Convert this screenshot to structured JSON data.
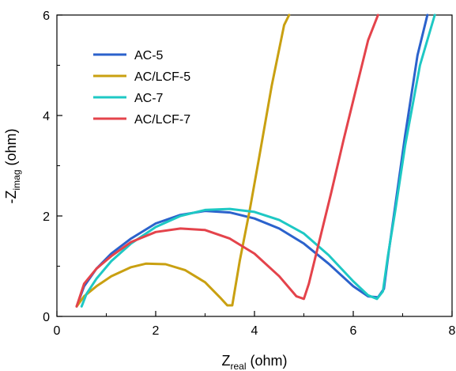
{
  "chart_data": {
    "type": "line",
    "xlabel": {
      "main": "Z",
      "sub": "real",
      "unit": " (ohm)"
    },
    "ylabel": {
      "prefix": "-Z",
      "sub": "imag",
      "unit": " (ohm)"
    },
    "xlim": [
      0,
      8
    ],
    "ylim": [
      0,
      6
    ],
    "xticks": [
      0,
      2,
      4,
      6,
      8
    ],
    "yticks": [
      0,
      2,
      4,
      6
    ],
    "grid": false,
    "legend_position": "top-left",
    "series": [
      {
        "name": "AC-5",
        "color": "#2b62cc",
        "x": [
          0.4,
          0.55,
          0.8,
          1.1,
          1.5,
          2.0,
          2.5,
          3.0,
          3.5,
          4.0,
          4.5,
          5.0,
          5.5,
          6.0,
          6.3,
          6.5,
          6.62,
          6.72,
          6.85,
          7.05,
          7.3,
          7.5
        ],
        "y": [
          0.2,
          0.6,
          0.95,
          1.25,
          1.55,
          1.85,
          2.02,
          2.1,
          2.07,
          1.95,
          1.75,
          1.45,
          1.05,
          0.6,
          0.4,
          0.38,
          0.55,
          1.3,
          2.2,
          3.6,
          5.2,
          6.0
        ]
      },
      {
        "name": "AC/LCF-5",
        "color": "#c9a011",
        "x": [
          0.4,
          0.55,
          0.8,
          1.1,
          1.5,
          1.8,
          2.2,
          2.6,
          3.0,
          3.3,
          3.45,
          3.55,
          3.7,
          3.9,
          4.1,
          4.35,
          4.6,
          4.7
        ],
        "y": [
          0.2,
          0.4,
          0.6,
          0.8,
          0.98,
          1.05,
          1.04,
          0.92,
          0.68,
          0.38,
          0.22,
          0.22,
          1.1,
          2.1,
          3.2,
          4.6,
          5.8,
          6.0
        ]
      },
      {
        "name": "AC-7",
        "color": "#1ec8c4",
        "x": [
          0.5,
          0.6,
          0.8,
          1.1,
          1.5,
          2.0,
          2.5,
          3.0,
          3.5,
          4.0,
          4.5,
          5.0,
          5.5,
          6.0,
          6.3,
          6.48,
          6.6,
          6.7,
          6.85,
          7.05,
          7.35,
          7.65
        ],
        "y": [
          0.2,
          0.45,
          0.75,
          1.1,
          1.45,
          1.78,
          2.0,
          2.12,
          2.14,
          2.08,
          1.92,
          1.65,
          1.22,
          0.7,
          0.42,
          0.35,
          0.5,
          1.2,
          2.1,
          3.4,
          5.0,
          6.0
        ]
      },
      {
        "name": "AC/LCF-7",
        "color": "#e4434b",
        "x": [
          0.4,
          0.55,
          0.8,
          1.1,
          1.5,
          2.0,
          2.5,
          3.0,
          3.5,
          4.0,
          4.5,
          4.85,
          5.0,
          5.1,
          5.3,
          5.55,
          5.8,
          6.05,
          6.3,
          6.5
        ],
        "y": [
          0.2,
          0.65,
          0.95,
          1.2,
          1.48,
          1.68,
          1.75,
          1.72,
          1.55,
          1.25,
          0.8,
          0.4,
          0.35,
          0.65,
          1.45,
          2.45,
          3.5,
          4.5,
          5.5,
          6.0
        ]
      }
    ]
  }
}
